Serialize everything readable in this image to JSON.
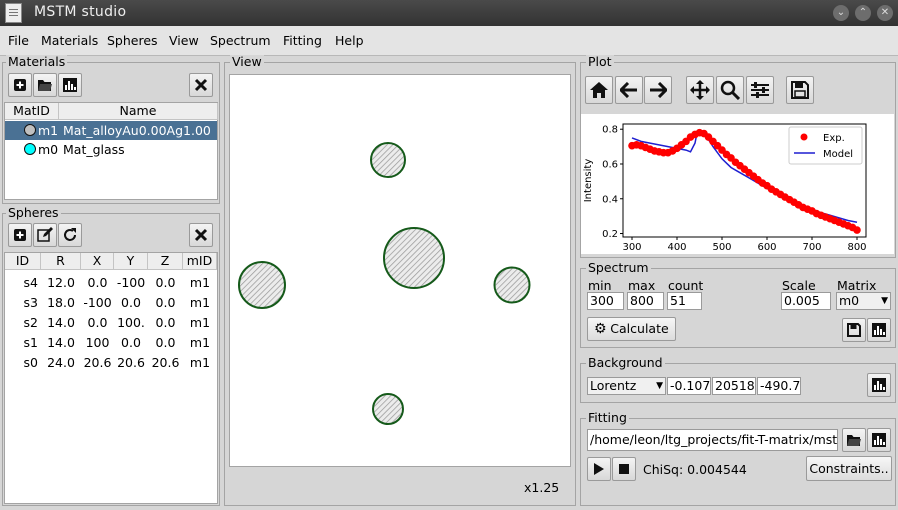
{
  "window": {
    "title": "MSTM studio"
  },
  "menu": [
    "File",
    "Materials",
    "Spheres",
    "View",
    "Spectrum",
    "Fitting",
    "Help"
  ],
  "materials": {
    "title": "Materials",
    "headers": [
      "MatID",
      "Name"
    ],
    "rows": [
      {
        "id": "m1",
        "name": "Mat_alloyAu0.00Ag1.00",
        "color": "#c0c0c0"
      },
      {
        "id": "m0",
        "name": "Mat_glass",
        "color": "#00ffff"
      }
    ]
  },
  "spheres": {
    "title": "Spheres",
    "headers": [
      "ID",
      "R",
      "X",
      "Y",
      "Z",
      "mID"
    ],
    "rows": [
      [
        "s4",
        "12.0",
        "0.0",
        "-100",
        "0.0",
        "m1"
      ],
      [
        "s3",
        "18.0",
        "-100",
        "0.0",
        "0.0",
        "m1"
      ],
      [
        "s2",
        "14.0",
        "0.0",
        "100.",
        "0.0",
        "m1"
      ],
      [
        "s1",
        "14.0",
        "100",
        "0.0",
        "0.0",
        "m1"
      ],
      [
        "s0",
        "24.0",
        "20.6",
        "20.6",
        "20.6",
        "m1"
      ]
    ]
  },
  "view": {
    "title": "View",
    "zoom": "x1.25"
  },
  "plot": {
    "title": "Plot"
  },
  "chart_data": {
    "type": "line",
    "ylabel": "Intensity",
    "xlabel": "",
    "xlim": [
      280,
      820
    ],
    "ylim": [
      0.18,
      0.83
    ],
    "xticks": [
      300,
      400,
      500,
      600,
      700,
      800
    ],
    "yticks": [
      0.2,
      0.4,
      0.6,
      0.8
    ],
    "legend": [
      "Exp.",
      "Model"
    ],
    "legend_position": "top-right",
    "series": [
      {
        "name": "Exp.",
        "color": "#ff0000",
        "x": [
          300,
          310,
          320,
          330,
          340,
          350,
          360,
          370,
          380,
          390,
          400,
          410,
          420,
          430,
          440,
          450,
          460,
          470,
          480,
          490,
          500,
          510,
          520,
          530,
          540,
          550,
          560,
          570,
          580,
          590,
          600,
          610,
          620,
          630,
          640,
          650,
          660,
          670,
          680,
          690,
          700,
          710,
          720,
          730,
          740,
          750,
          760,
          770,
          780,
          790,
          800
        ],
        "y": [
          0.705,
          0.71,
          0.705,
          0.695,
          0.685,
          0.675,
          0.67,
          0.665,
          0.665,
          0.675,
          0.69,
          0.71,
          0.73,
          0.755,
          0.77,
          0.78,
          0.775,
          0.755,
          0.73,
          0.705,
          0.68,
          0.655,
          0.635,
          0.61,
          0.59,
          0.57,
          0.55,
          0.53,
          0.51,
          0.49,
          0.475,
          0.455,
          0.44,
          0.425,
          0.41,
          0.395,
          0.38,
          0.365,
          0.35,
          0.34,
          0.33,
          0.315,
          0.305,
          0.295,
          0.285,
          0.275,
          0.265,
          0.255,
          0.245,
          0.235,
          0.22
        ]
      },
      {
        "name": "Model",
        "color": "#1f1fd0",
        "x": [
          300,
          320,
          340,
          360,
          380,
          400,
          420,
          430,
          440,
          445,
          450,
          460,
          470,
          480,
          500,
          520,
          540,
          560,
          580,
          600,
          620,
          640,
          660,
          680,
          700,
          720,
          740,
          760,
          780,
          800
        ],
        "y": [
          0.75,
          0.73,
          0.72,
          0.71,
          0.7,
          0.69,
          0.68,
          0.67,
          0.72,
          0.785,
          0.79,
          0.775,
          0.74,
          0.7,
          0.63,
          0.58,
          0.55,
          0.52,
          0.49,
          0.46,
          0.43,
          0.405,
          0.385,
          0.36,
          0.34,
          0.32,
          0.305,
          0.29,
          0.275,
          0.265
        ]
      }
    ]
  },
  "spectrum": {
    "title": "Spectrum",
    "min_label": "min",
    "max_label": "max",
    "count_label": "count",
    "scale_label": "Scale",
    "matrix_label": "Matrix",
    "min": "300",
    "max": "800",
    "count": "51",
    "scale": "0.005",
    "matrix": "m0",
    "calculate": "Calculate"
  },
  "background": {
    "title": "Background",
    "type": "Lorentz",
    "p1": "-0.107",
    "p2": "20518",
    "p3": "-490.7"
  },
  "fitting": {
    "title": "Fitting",
    "path": "/home/leon/ltg_projects/fit-T-matrix/mstm",
    "chisq": "ChiSq: 0.004544",
    "constraints": "Constraints.."
  }
}
